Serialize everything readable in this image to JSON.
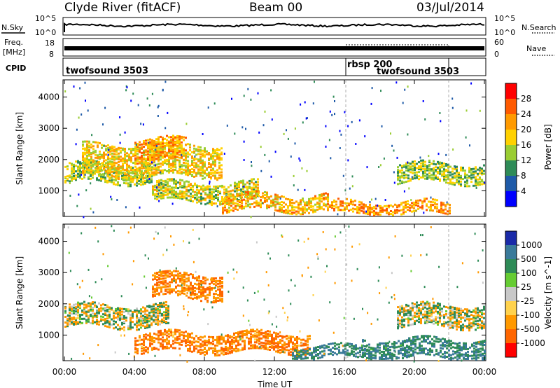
{
  "header": {
    "title": "Clyde River (fitACF)",
    "beam": "Beam 00",
    "date": "03/Jul/2014"
  },
  "nsky_panel": {
    "label": "N.Sky",
    "left_ticks": [
      "10^5",
      "10^0"
    ],
    "right_ticks": [
      "10^5",
      "10^0"
    ],
    "right_label": "N.Search"
  },
  "freq_panel": {
    "label": "Freq.",
    "unit": "[MHz]",
    "left_ticks": [
      "18",
      "8"
    ],
    "right_ticks": [
      "60",
      "0"
    ],
    "right_label": "Nave"
  },
  "cpid_panel": {
    "label": "CPID",
    "segments": [
      {
        "name": "twofsound 3503",
        "start_hour": 0,
        "end_hour": 16
      },
      {
        "name": "rbsp 200",
        "start_hour": 16,
        "end_hour": 21.8
      },
      {
        "name": "twofsound 3503",
        "start_hour": 16,
        "end_hour": 21.8
      }
    ]
  },
  "x_axis": {
    "title": "Time UT",
    "ticks": [
      "00:00",
      "04:00",
      "08:00",
      "12:00",
      "16:00",
      "20:00",
      "00:00"
    ]
  },
  "power_colorbar": {
    "label": "Power [dB]",
    "ticks": [
      "28",
      "24",
      "20",
      "16",
      "12",
      "8",
      "4"
    ],
    "colors": [
      "#ff0000",
      "#ff5a00",
      "#ff9a00",
      "#ffd100",
      "#9acd32",
      "#2e8b57",
      "#1e5aa8",
      "#0000ff"
    ]
  },
  "velocity_colorbar": {
    "label": "Velocity [m s^-1]",
    "ticks": [
      "1000",
      "500",
      "100",
      "25",
      "-25",
      "-100",
      "-500",
      "-1000"
    ],
    "colors": [
      "#1a2aa8",
      "#3a7a9a",
      "#2e8b57",
      "#66cc33",
      "#c8c8c8",
      "#ffd24d",
      "#ff9900",
      "#ff6600",
      "#ff0000"
    ]
  },
  "chart_data": [
    {
      "type": "heatmap",
      "title": "Power",
      "xlabel": "Time UT",
      "ylabel": "Slant Range [km]",
      "xlim_hours": [
        0,
        24
      ],
      "ylim": [
        180,
        4550
      ],
      "y_ticks": [
        1000,
        2000,
        3000,
        4000
      ],
      "colorbar": "Power [dB]",
      "bands": [
        {
          "t": [
            0,
            5
          ],
          "range": [
            1300,
            1900
          ],
          "dB": 14
        },
        {
          "t": [
            1,
            9
          ],
          "range": [
            1500,
            2500
          ],
          "dB": 18
        },
        {
          "t": [
            4,
            7
          ],
          "range": [
            2000,
            2700
          ],
          "dB": 22
        },
        {
          "t": [
            5,
            11
          ],
          "range": [
            700,
            1300
          ],
          "dB": 16
        },
        {
          "t": [
            9,
            15
          ],
          "range": [
            400,
            900
          ],
          "dB": 20
        },
        {
          "t": [
            15,
            22
          ],
          "range": [
            300,
            700
          ],
          "dB": 22
        },
        {
          "t": [
            19,
            24
          ],
          "range": [
            1300,
            1900
          ],
          "dB": 14
        }
      ]
    },
    {
      "type": "heatmap",
      "title": "Velocity",
      "xlabel": "Time UT",
      "ylabel": "Slant Range [km]",
      "xlim_hours": [
        0,
        24
      ],
      "ylim": [
        180,
        4550
      ],
      "y_ticks": [
        1000,
        2000,
        3000,
        4000
      ],
      "colorbar": "Velocity [m s^-1]",
      "bands": [
        {
          "t": [
            0,
            6
          ],
          "range": [
            1300,
            2000
          ],
          "v": 0
        },
        {
          "t": [
            5,
            9
          ],
          "range": [
            2200,
            3000
          ],
          "v": -300
        },
        {
          "t": [
            4,
            14
          ],
          "range": [
            500,
            1100
          ],
          "v": -300
        },
        {
          "t": [
            13,
            17
          ],
          "range": [
            300,
            700
          ],
          "v": 300
        },
        {
          "t": [
            17,
            24
          ],
          "range": [
            300,
            900
          ],
          "v": 300
        },
        {
          "t": [
            19,
            24
          ],
          "range": [
            1300,
            2000
          ],
          "v": 0
        }
      ]
    }
  ]
}
